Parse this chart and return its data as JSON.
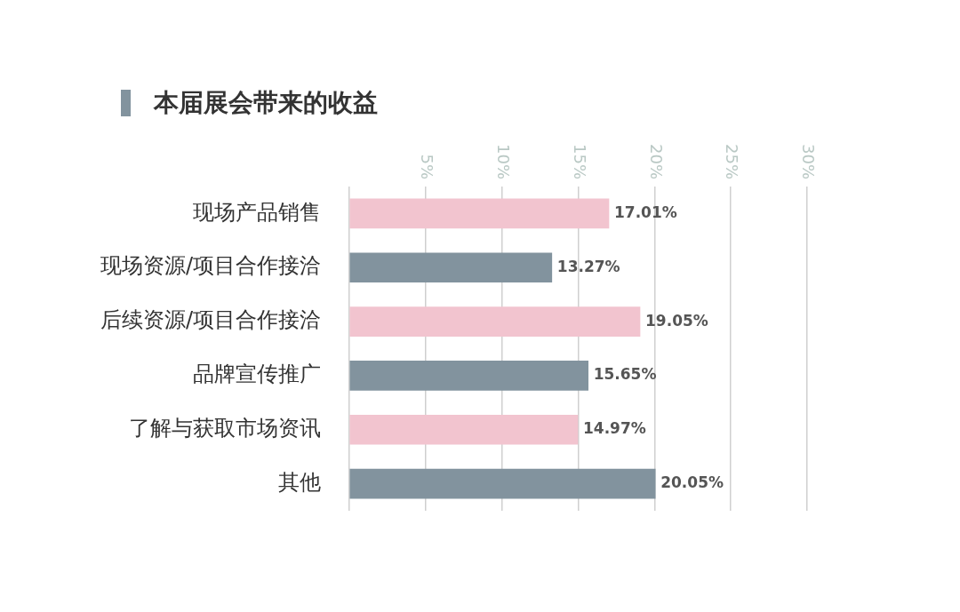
{
  "chart_data": {
    "type": "bar",
    "orientation": "horizontal",
    "title": "本届展会带来的收益",
    "categories": [
      "现场产品销售",
      "现场资源/项目合作接洽",
      "后续资源/项目合作接洽",
      "品牌宣传推广",
      "了解与获取市场资讯",
      "其他"
    ],
    "values": [
      17.01,
      13.27,
      19.05,
      15.65,
      14.97,
      20.05
    ],
    "colors": [
      "#f2c4cf",
      "#82939e",
      "#f2c4cf",
      "#82939e",
      "#f2c4cf",
      "#82939e"
    ],
    "value_labels": [
      "17.01%",
      "13.27%",
      "19.05%",
      "15.65%",
      "14.97%",
      "20.05%"
    ],
    "xlim": [
      0,
      30
    ],
    "xticks": [
      {
        "value": 0,
        "label": null
      },
      {
        "value": 5,
        "label": "5%"
      },
      {
        "value": 10,
        "label": "10%"
      },
      {
        "value": 15,
        "label": "15%"
      },
      {
        "value": 20,
        "label": "20%"
      },
      {
        "value": 25,
        "label": "25%"
      },
      {
        "value": 30,
        "label": "30%"
      }
    ],
    "grid": "x",
    "legend": false
  }
}
